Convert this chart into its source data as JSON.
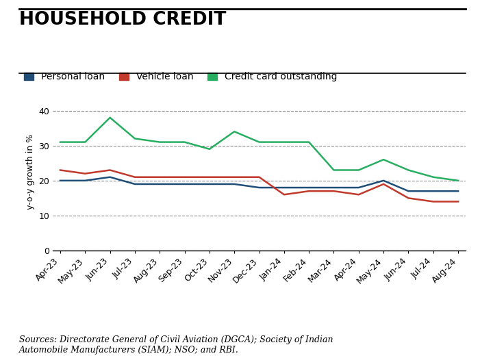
{
  "title": "HOUSEHOLD CREDIT",
  "ylabel": "y-o-y growth in %",
  "source_text": "Sources: Directorate General of Civil Aviation (DGCA); Society of Indian\nAutomobile Manufacturers (SIAM); NSO; and RBI.",
  "x_labels": [
    "Apr-23",
    "May-23",
    "Jun-23",
    "Jul-23",
    "Aug-23",
    "Sep-23",
    "Oct-23",
    "Nov-23",
    "Dec-23",
    "Jan-24",
    "Feb-24",
    "Mar-24",
    "Apr-24",
    "May-24",
    "Jun-24",
    "Jul-24",
    "Aug-24"
  ],
  "personal_loan": [
    20,
    20,
    21,
    19,
    19,
    19,
    19,
    19,
    18,
    18,
    18,
    18,
    18,
    20,
    17,
    17,
    17
  ],
  "vehicle_loan": [
    23,
    22,
    23,
    21,
    21,
    21,
    21,
    21,
    21,
    16,
    17,
    17,
    16,
    19,
    15,
    14,
    14
  ],
  "credit_card": [
    31,
    31,
    38,
    32,
    31,
    31,
    29,
    34,
    31,
    31,
    31,
    23,
    23,
    26,
    23,
    21,
    20
  ],
  "personal_loan_color": "#1f4e79",
  "vehicle_loan_color": "#c0392b",
  "credit_card_color": "#27ae60",
  "ylim": [
    0,
    45
  ],
  "yticks": [
    0,
    10,
    20,
    30,
    40
  ],
  "grid_color": "#888888",
  "background_color": "#ffffff",
  "border_color": "#000000",
  "title_fontsize": 19,
  "legend_fontsize": 10,
  "axis_fontsize": 9,
  "source_fontsize": 9
}
